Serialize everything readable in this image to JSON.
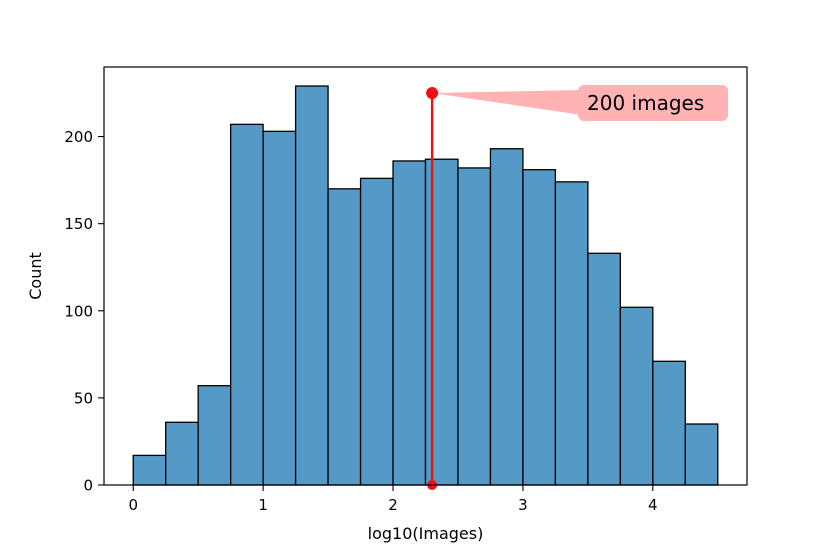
{
  "chart_data": {
    "type": "bar",
    "subtype": "histogram",
    "xlabel": "log10(Images)",
    "ylabel": "Count",
    "xlim": [
      -0.225,
      4.725
    ],
    "ylim": [
      0,
      225
    ],
    "x_ticks": [
      0,
      1,
      2,
      3,
      4
    ],
    "y_ticks": [
      0,
      50,
      100,
      150,
      200
    ],
    "bin_width": 0.25,
    "bins_start": [
      0,
      0.25,
      0.5,
      0.75,
      1.0,
      1.25,
      1.5,
      1.75,
      2.0,
      2.25,
      2.5,
      2.75,
      3.0,
      3.25,
      3.5,
      3.75,
      4.0,
      4.25
    ],
    "values": [
      17,
      36,
      57,
      207,
      203,
      229,
      170,
      176,
      186,
      187,
      182,
      193,
      181,
      174,
      133,
      102,
      71,
      35
    ],
    "bar_color": "#5599c7",
    "edge_color": "#000000",
    "grid": false,
    "annotation": {
      "text": "200 images",
      "x": 2.301,
      "y_top": 225,
      "y_bottom": 0,
      "line_color": "#ee1111",
      "box_color": "#ffb3b3"
    }
  }
}
